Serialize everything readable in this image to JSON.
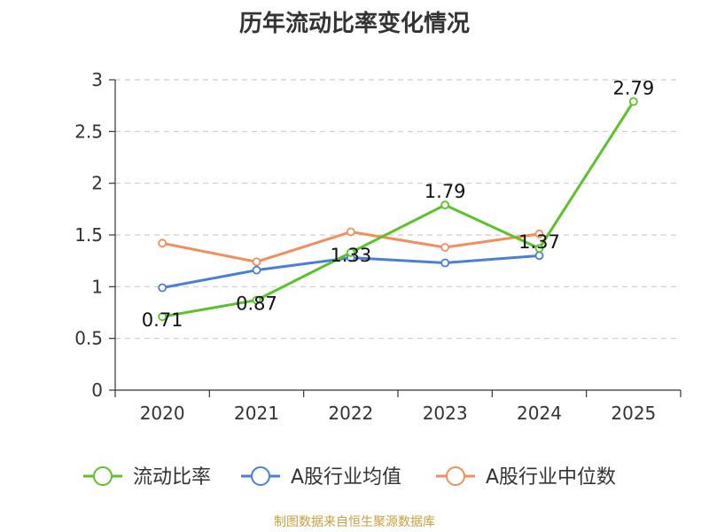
{
  "title": "历年流动比率变化情况",
  "source": "制图数据来自恒生聚源数据库",
  "colors": {
    "current_ratio": "#5cc22a",
    "industry_avg": "#4a7fd6",
    "industry_median": "#f28d5c",
    "axis": "#333333",
    "grid": "#cccccc"
  },
  "chart_data": {
    "type": "line",
    "title": "历年流动比率变化情况",
    "categories": [
      "2020",
      "2021",
      "2022",
      "2023",
      "2024",
      "2025"
    ],
    "ylim": [
      0,
      3
    ],
    "yticks": [
      0,
      0.5,
      1,
      1.5,
      2,
      2.5,
      3
    ],
    "ytick_labels": [
      "0",
      "0.5",
      "1",
      "1.5",
      "2",
      "2.5",
      "3"
    ],
    "grid": true,
    "legend_position": "bottom",
    "series": [
      {
        "name": "流动比率",
        "color": "#5cc22a",
        "values": [
          0.71,
          0.87,
          1.33,
          1.79,
          1.37,
          2.79
        ],
        "labels": [
          "0.71",
          "0.87",
          "1.33",
          "1.79",
          "1.37",
          "2.79"
        ]
      },
      {
        "name": "A股行业均值",
        "color": "#4a7fd6",
        "values": [
          0.99,
          1.16,
          1.28,
          1.23,
          1.3,
          null
        ],
        "labels": []
      },
      {
        "name": "A股行业中位数",
        "color": "#f28d5c",
        "values": [
          1.42,
          1.24,
          1.53,
          1.38,
          1.51,
          null
        ],
        "labels": []
      }
    ]
  }
}
